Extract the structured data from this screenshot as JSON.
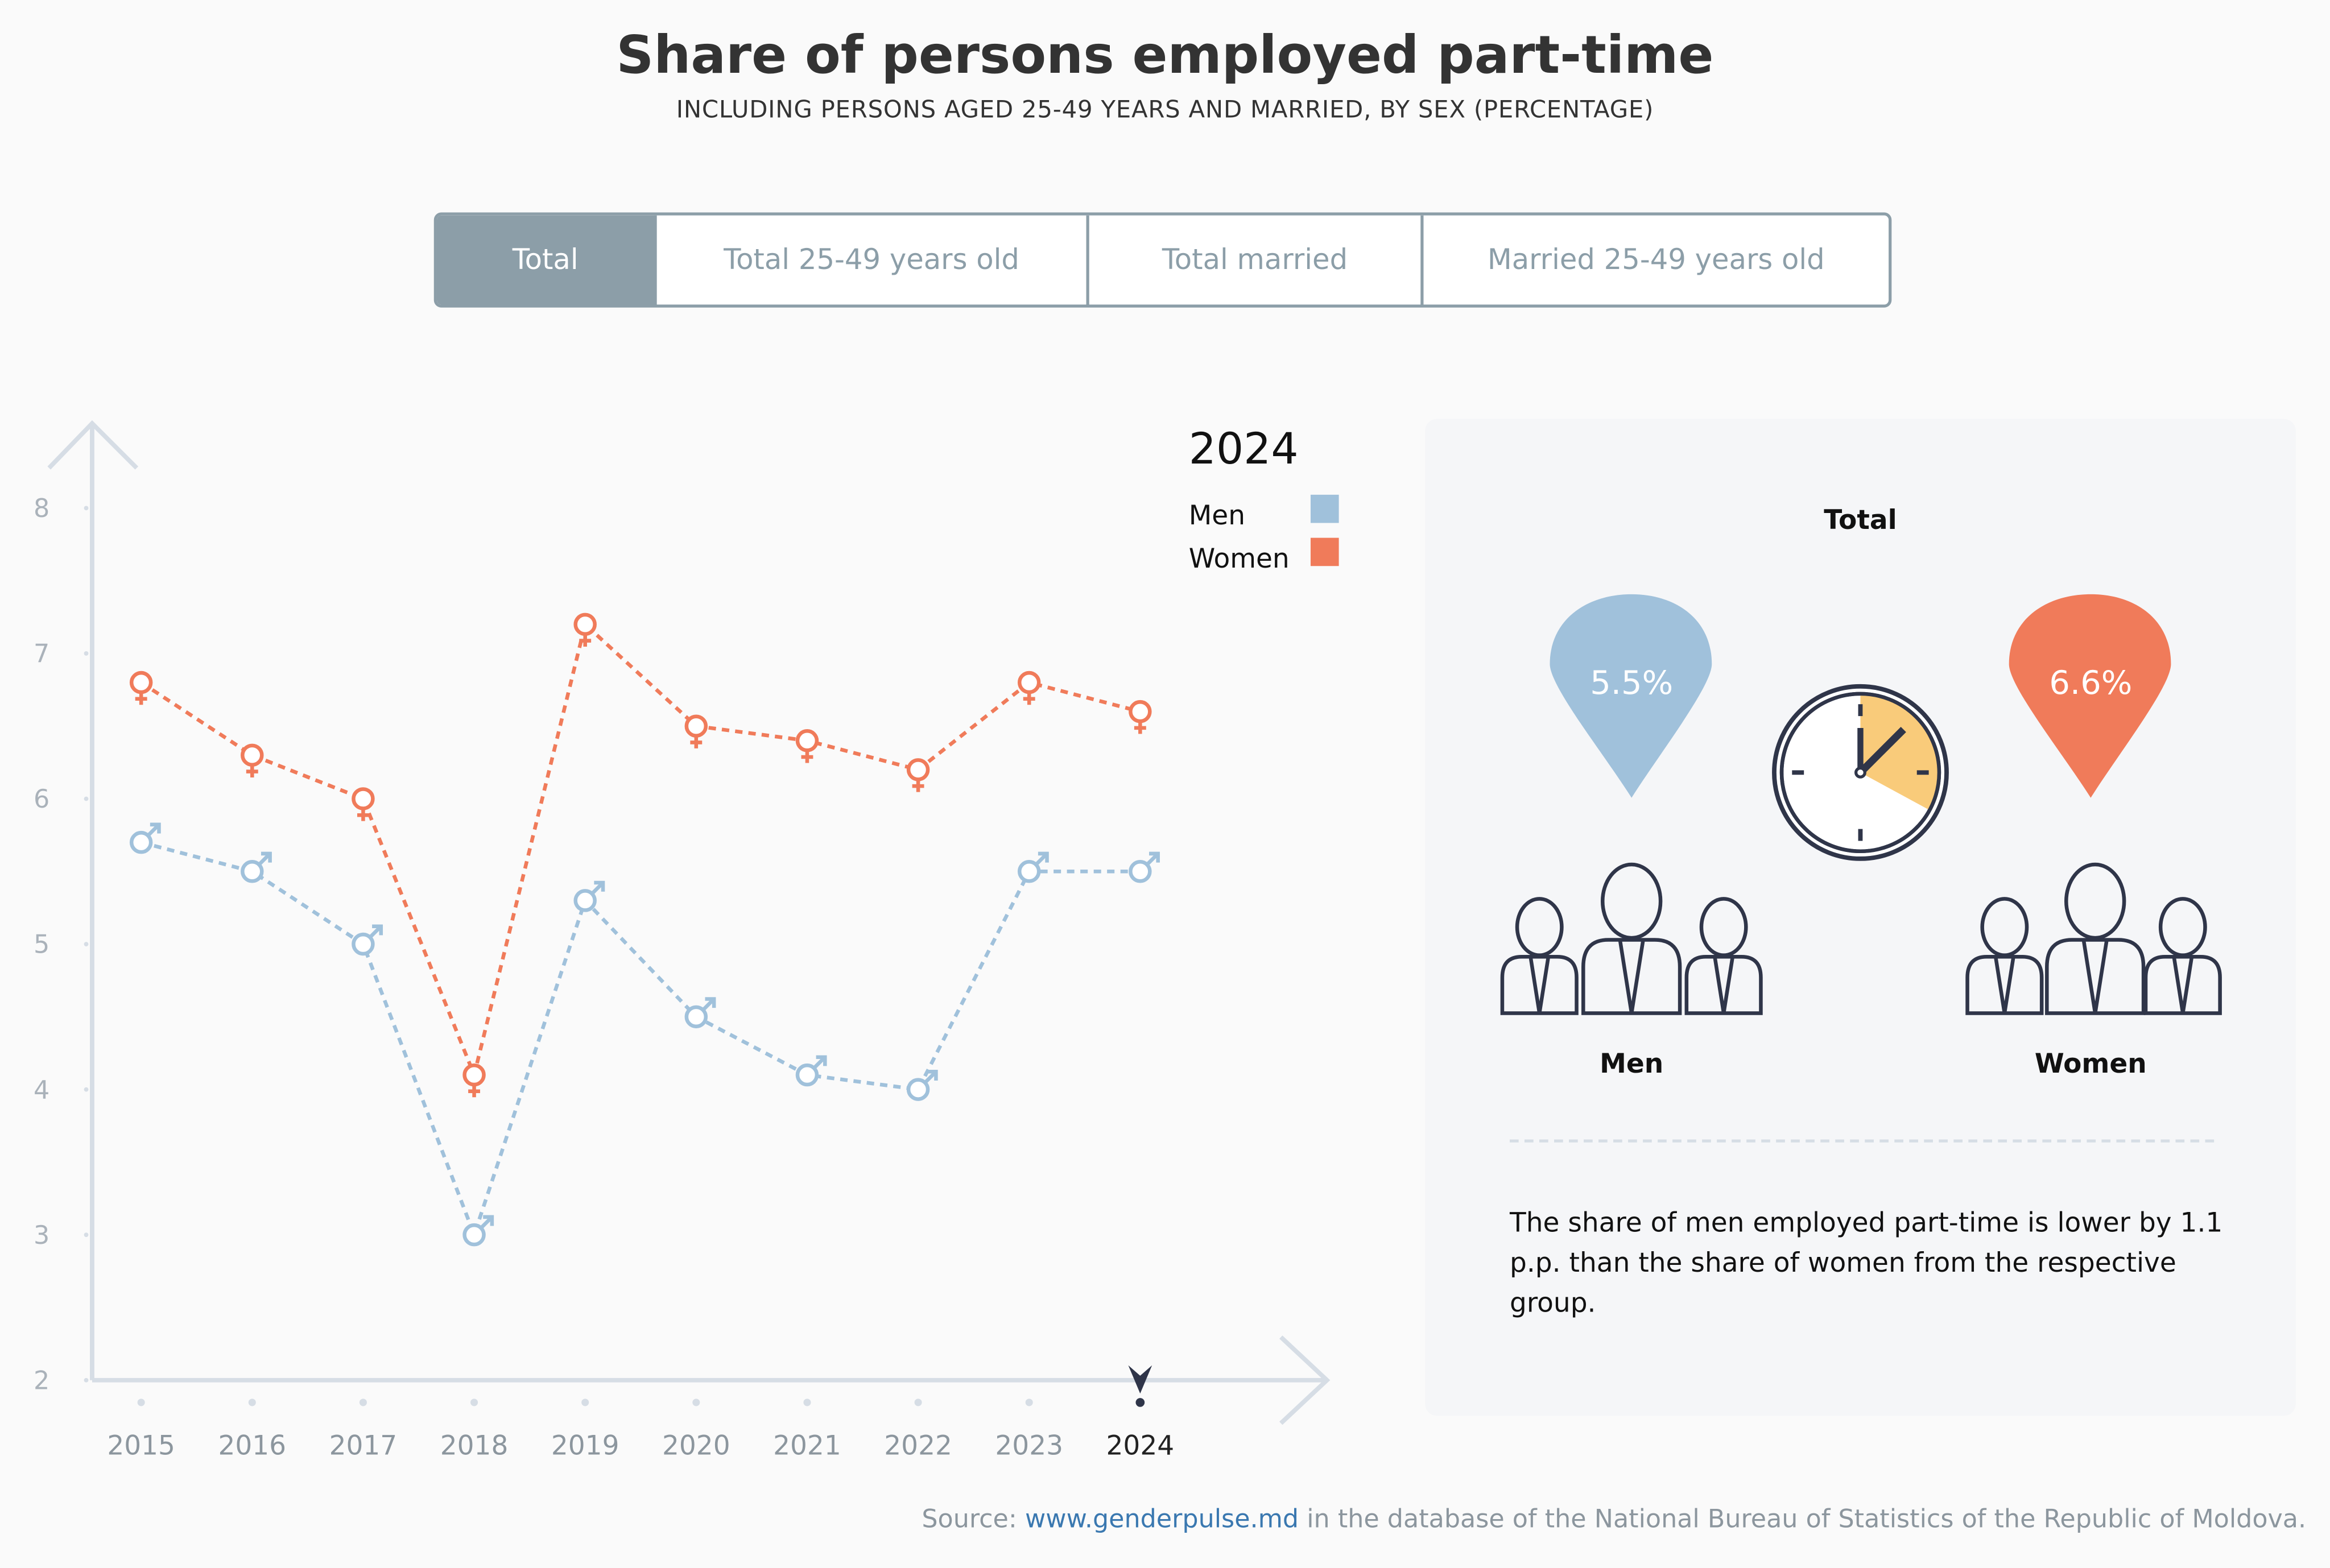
{
  "header": {
    "title": "Share of persons employed part-time",
    "subtitle": "INCLUDING PERSONS AGED 25-49 YEARS AND MARRIED, BY SEX (PERCENTAGE)"
  },
  "tabs": [
    {
      "label": "Total",
      "active": true
    },
    {
      "label": "Total 25-49 years old"
    },
    {
      "label": "Total married"
    },
    {
      "label": "Married 25-49 years old"
    }
  ],
  "colors": {
    "men": "#a0c1db",
    "women": "#f07b5a",
    "axis": "#d6dde5",
    "clock_fill": "#f9cb7a",
    "icon_stroke": "#2f3549",
    "tab_active": "#8c9ea8"
  },
  "chart_data": {
    "type": "line",
    "x": [
      "2015",
      "2016",
      "2017",
      "2018",
      "2019",
      "2020",
      "2021",
      "2022",
      "2023",
      "2024"
    ],
    "ylim": [
      2,
      8
    ],
    "yticks": [
      "2",
      "3",
      "4",
      "5",
      "6",
      "7",
      "8"
    ],
    "selected_year": "2024",
    "legend": {
      "title": "2024",
      "placement": "top-right"
    },
    "series": [
      {
        "name": "Men",
        "icon": "male-symbol",
        "values": [
          5.7,
          5.5,
          5.0,
          3.0,
          5.3,
          4.5,
          4.1,
          4.0,
          5.5,
          5.5
        ]
      },
      {
        "name": "Women",
        "icon": "female-symbol",
        "values": [
          6.8,
          6.3,
          6.0,
          4.1,
          7.2,
          6.5,
          6.4,
          6.2,
          6.8,
          6.6
        ]
      }
    ]
  },
  "panel": {
    "heading": "Total",
    "men": {
      "value": "5.5%",
      "label": "Men"
    },
    "women": {
      "value": "6.6%",
      "label": "Women"
    },
    "description": "The share of men employed part-time is lower by 1.1 p.p. than the share of women from the respective group."
  },
  "footer": {
    "source_prefix": "Source: ",
    "source_link": "www.genderpulse.md",
    "source_suffix": " in the database of the National Bureau of Statistics of the Republic of Moldova."
  }
}
